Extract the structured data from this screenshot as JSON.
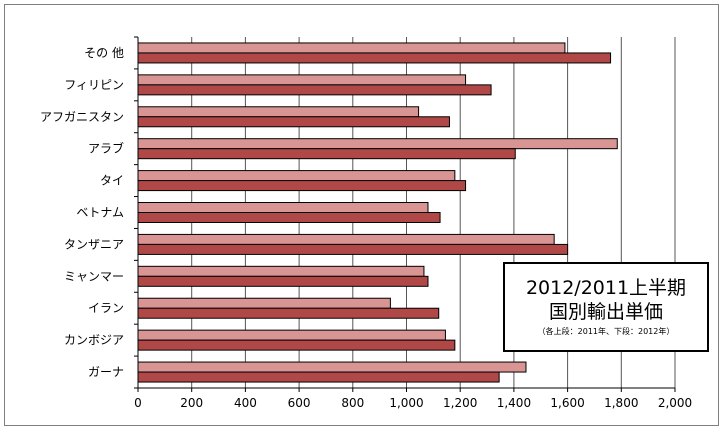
{
  "chart_data": {
    "type": "bar",
    "orientation": "horizontal",
    "categories": [
      "その 他",
      "フィリピン",
      "アフガニスタン",
      "アラブ",
      "タイ",
      "ベトナム",
      "タンザニア",
      "ミャンマー",
      "イラン",
      "カンボジア",
      "ガーナ"
    ],
    "series": [
      {
        "values": [
          1590,
          1220,
          1045,
          1785,
          1180,
          1080,
          1550,
          1065,
          940,
          1145,
          1445
        ]
      },
      {
        "values": [
          1760,
          1315,
          1160,
          1405,
          1220,
          1125,
          1600,
          1080,
          1120,
          1180,
          1345
        ]
      }
    ],
    "colors": {
      "series_2011": "#d99594",
      "series_2012": "#b14848",
      "bar_outline": "#000000",
      "grid": "#555555"
    },
    "xlim": [
      0,
      2000
    ],
    "x_ticks": [
      "0",
      "200",
      "400",
      "600",
      "800",
      "1,000",
      "1,200",
      "1,400",
      "1,600",
      "1,800",
      "2,000"
    ],
    "title_box": {
      "line1": "2012/2011上半期",
      "line2": "国別輸出単価",
      "note": "（各上段：2011年、下段：2012年）"
    },
    "grid": true
  }
}
